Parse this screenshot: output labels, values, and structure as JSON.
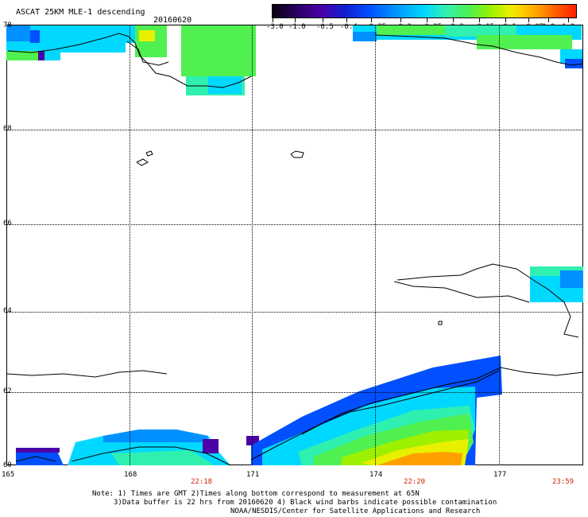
{
  "header": {
    "title": "ASCAT 25KM MLE-1 descending",
    "date": "20160620"
  },
  "colorbar": {
    "labels": [
      "-3.0",
      "-1.0",
      "-0.5",
      "-0.4",
      "-0.35",
      "-0.3",
      "-0.25",
      "-0.2",
      "-0.15",
      "-0.1",
      "-0.05",
      "0.0",
      "1.0"
    ]
  },
  "map": {
    "lat_labels": [
      "70",
      "68",
      "66",
      "64",
      "62",
      "60"
    ],
    "lon_labels": [
      "165",
      "168",
      "171",
      "174",
      "177"
    ],
    "time_labels": [
      "22:18",
      "22:20",
      "23:59"
    ],
    "colors": {
      "time_label": "#d02000",
      "deep_blue": "#0050ff",
      "blue": "#0090ff",
      "cyan": "#00d8ff",
      "teal": "#30f0b0",
      "green": "#50f050",
      "lime": "#9cf000",
      "yellow": "#e8f000",
      "orange": "#ffa000",
      "purple": "#4b00a8"
    }
  },
  "notes": {
    "line1": "Note: 1) Times are GMT 2)Times along bottom correspond to measurement at 65N",
    "line2": "3)Data buffer is 22 hrs from 20160620 4) Black wind barbs indicate possible contamination",
    "line3": "NOAA/NESDIS/Center for Satellite Applications and Research"
  }
}
